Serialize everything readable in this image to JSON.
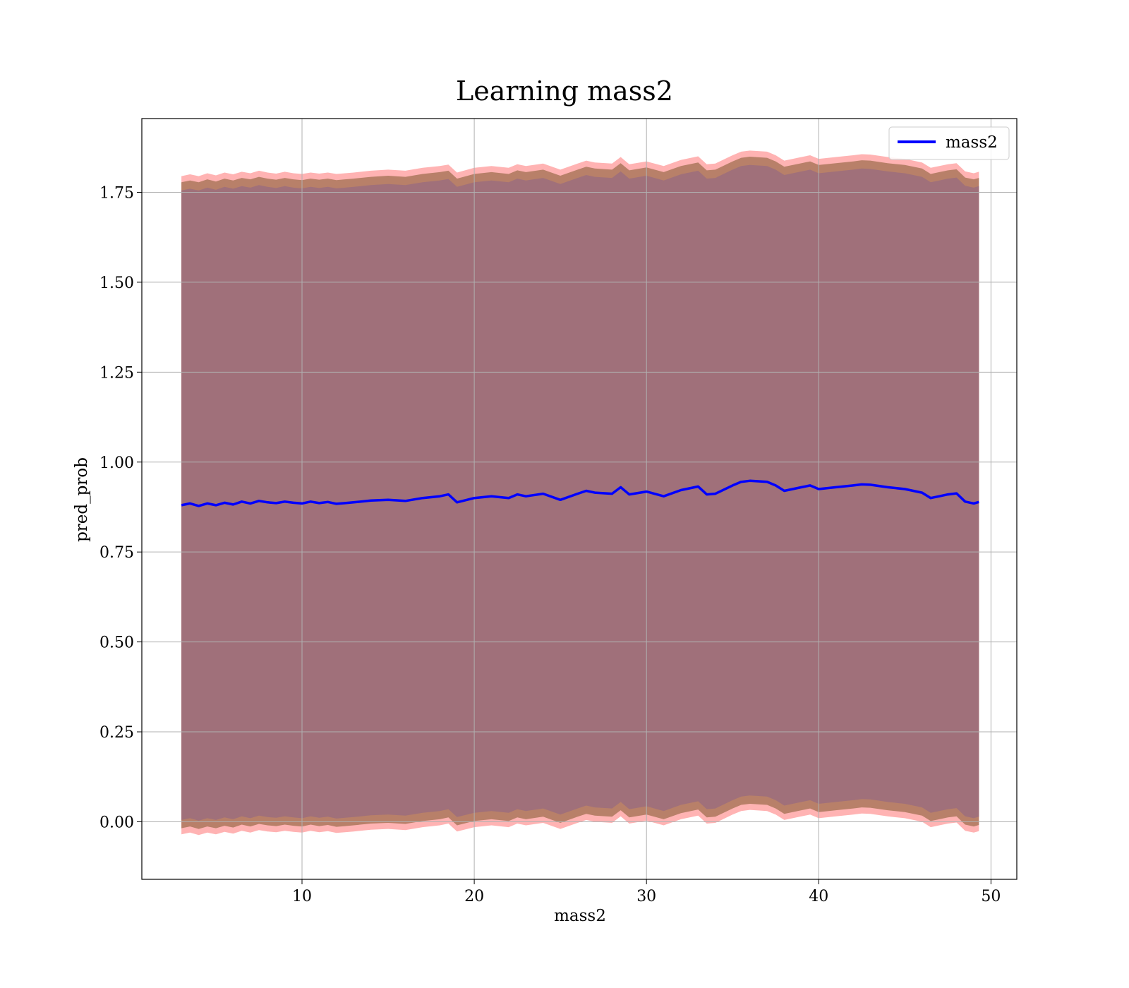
{
  "chart_data": {
    "type": "line",
    "title": "Learning mass2",
    "xlabel": "mass2",
    "ylabel": "pred_prob",
    "xlim": [
      0.7,
      51.5
    ],
    "ylim": [
      -0.16,
      1.955
    ],
    "xticks": [
      10,
      20,
      30,
      40,
      50
    ],
    "yticks": [
      0.0,
      0.25,
      0.5,
      0.75,
      1.0,
      1.25,
      1.5,
      1.75
    ],
    "ytick_labels": [
      "0.00",
      "0.25",
      "0.50",
      "0.75",
      "1.00",
      "1.25",
      "1.50",
      "1.75"
    ],
    "xtick_labels": [
      "10",
      "20",
      "30",
      "40",
      "50"
    ],
    "grid": true,
    "legend": {
      "position": "top-right",
      "entries": [
        "mass2"
      ]
    },
    "colors": {
      "line": "#0000ff",
      "band_outer": "#ff9999",
      "band_mid": "#b07a60",
      "band_inner": "#a0707a"
    },
    "series": [
      {
        "name": "mass2",
        "x": [
          3.0,
          3.5,
          4.0,
          4.5,
          5.0,
          5.5,
          6.0,
          6.5,
          7.0,
          7.5,
          8.0,
          8.5,
          9.0,
          9.5,
          10.0,
          10.5,
          11.0,
          11.5,
          12.0,
          12.5,
          13.0,
          14.0,
          15.0,
          16.0,
          17.0,
          18.0,
          18.5,
          19.0,
          20.0,
          21.0,
          22.0,
          22.5,
          23.0,
          24.0,
          25.0,
          26.0,
          26.5,
          27.0,
          28.0,
          28.5,
          29.0,
          30.0,
          31.0,
          32.0,
          33.0,
          33.5,
          34.0,
          35.0,
          35.5,
          36.0,
          37.0,
          37.5,
          38.0,
          39.0,
          39.5,
          40.0,
          41.0,
          42.0,
          42.5,
          43.0,
          44.0,
          45.0,
          46.0,
          46.5,
          47.0,
          47.5,
          48.0,
          48.5,
          49.0,
          49.3
        ],
        "y": [
          0.88,
          0.885,
          0.878,
          0.885,
          0.88,
          0.887,
          0.882,
          0.89,
          0.885,
          0.892,
          0.888,
          0.886,
          0.89,
          0.887,
          0.885,
          0.89,
          0.886,
          0.889,
          0.884,
          0.886,
          0.888,
          0.893,
          0.895,
          0.892,
          0.9,
          0.905,
          0.91,
          0.888,
          0.9,
          0.905,
          0.9,
          0.91,
          0.905,
          0.912,
          0.895,
          0.912,
          0.92,
          0.915,
          0.912,
          0.93,
          0.91,
          0.918,
          0.905,
          0.922,
          0.932,
          0.91,
          0.912,
          0.935,
          0.945,
          0.948,
          0.945,
          0.935,
          0.92,
          0.93,
          0.935,
          0.925,
          0.93,
          0.935,
          0.938,
          0.937,
          0.93,
          0.925,
          0.915,
          0.9,
          0.905,
          0.91,
          0.913,
          0.89,
          0.885,
          0.889
        ],
        "upper": [
          1.77,
          1.775,
          1.77,
          1.778,
          1.772,
          1.78,
          1.775,
          1.782,
          1.778,
          1.785,
          1.78,
          1.777,
          1.782,
          1.778,
          1.776,
          1.78,
          1.777,
          1.78,
          1.776,
          1.778,
          1.78,
          1.785,
          1.788,
          1.785,
          1.793,
          1.798,
          1.802,
          1.78,
          1.793,
          1.798,
          1.793,
          1.803,
          1.798,
          1.805,
          1.788,
          1.805,
          1.813,
          1.808,
          1.805,
          1.823,
          1.803,
          1.811,
          1.798,
          1.815,
          1.825,
          1.803,
          1.805,
          1.828,
          1.838,
          1.841,
          1.838,
          1.828,
          1.813,
          1.823,
          1.828,
          1.818,
          1.823,
          1.828,
          1.831,
          1.83,
          1.823,
          1.818,
          1.808,
          1.793,
          1.798,
          1.803,
          1.806,
          1.783,
          1.778,
          1.782
        ],
        "lower": [
          -0.01,
          -0.005,
          -0.012,
          -0.005,
          -0.01,
          -0.003,
          -0.008,
          0.0,
          -0.005,
          0.002,
          -0.002,
          -0.004,
          0.0,
          -0.003,
          -0.005,
          0.0,
          -0.004,
          -0.001,
          -0.006,
          -0.004,
          -0.002,
          0.003,
          0.005,
          0.002,
          0.01,
          0.015,
          0.02,
          -0.002,
          0.01,
          0.015,
          0.01,
          0.02,
          0.015,
          0.022,
          0.005,
          0.022,
          0.03,
          0.025,
          0.022,
          0.04,
          0.02,
          0.028,
          0.015,
          0.032,
          0.042,
          0.02,
          0.022,
          0.045,
          0.055,
          0.058,
          0.055,
          0.045,
          0.03,
          0.04,
          0.045,
          0.035,
          0.04,
          0.045,
          0.048,
          0.047,
          0.04,
          0.035,
          0.025,
          0.01,
          0.015,
          0.02,
          0.023,
          0.0,
          -0.005,
          -0.001
        ]
      }
    ]
  }
}
